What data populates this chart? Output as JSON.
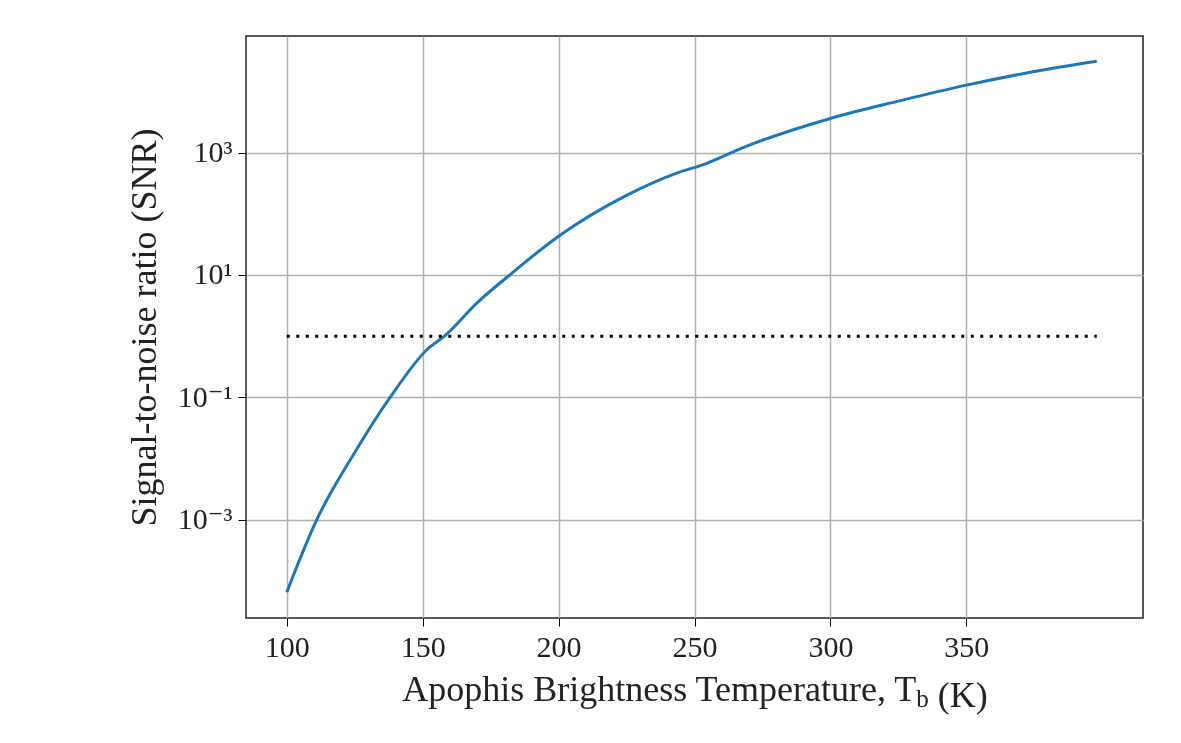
{
  "chart_data": {
    "type": "line",
    "xlabel": "Apophis Brightness Temperature, T$_{b}$ (K)",
    "ylabel": "Signal-to-noise ratio (SNR)",
    "series": [
      {
        "color": "#1f77b4",
        "line_style": "solid",
        "x": [
          100,
          111,
          125,
          138,
          152,
          158,
          170,
          182,
          200,
          225,
          244,
          253,
          269,
          300,
          325,
          350,
          375,
          398
        ],
        "values": [
          6.6e-05,
          0.001,
          0.0126,
          0.1,
          0.63,
          1,
          3.5,
          10,
          43,
          200,
          470,
          630,
          1260,
          3600,
          6900,
          12600,
          21000,
          31000
        ]
      },
      {
        "color": "#000000",
        "line_style": "dotted",
        "x": [
          100,
          398
        ],
        "values": [
          1,
          1
        ]
      }
    ],
    "xlim": [
      85,
      415
    ],
    "xticks": [
      100,
      150,
      200,
      250,
      300,
      350
    ],
    "ylim": [
      2.5e-05,
      80000
    ],
    "yticks": [
      {
        "value": 0.001,
        "label": "10⁻³"
      },
      {
        "value": 0.1,
        "label": "10⁻¹"
      },
      {
        "value": 10,
        "label": "10¹"
      },
      {
        "value": 1000,
        "label": "10³"
      }
    ],
    "log": "y",
    "grid": true
  }
}
